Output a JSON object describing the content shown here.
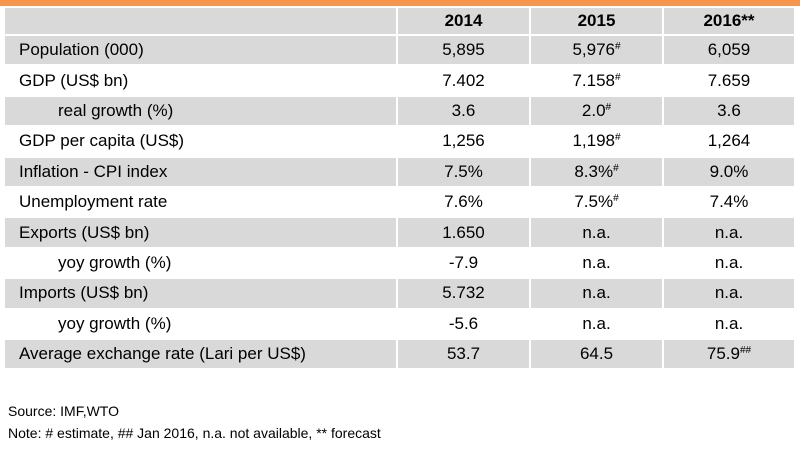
{
  "colors": {
    "accent_bar": "#f5964f",
    "shaded_row": "#d9d9d9"
  },
  "table": {
    "columns": [
      "2014",
      "2015",
      "2016**"
    ],
    "rows": [
      {
        "label": "Population (000)",
        "indent": false,
        "shaded": true,
        "cells": [
          {
            "value": "5,895"
          },
          {
            "value": "5,976",
            "mark": "#"
          },
          {
            "value": "6,059"
          }
        ]
      },
      {
        "label": "GDP (US$ bn)",
        "indent": false,
        "shaded": false,
        "cells": [
          {
            "value": "7.402"
          },
          {
            "value": "7.158",
            "mark": "#"
          },
          {
            "value": "7.659"
          }
        ]
      },
      {
        "label": "real growth (%)",
        "indent": true,
        "shaded": true,
        "cells": [
          {
            "value": "3.6"
          },
          {
            "value": "2.0",
            "mark": "#"
          },
          {
            "value": "3.6"
          }
        ]
      },
      {
        "label": "GDP per capita (US$)",
        "indent": false,
        "shaded": false,
        "cells": [
          {
            "value": "1,256"
          },
          {
            "value": "1,198",
            "mark": "#"
          },
          {
            "value": "1,264"
          }
        ]
      },
      {
        "label": "Inflation - CPI index",
        "indent": false,
        "shaded": true,
        "cells": [
          {
            "value": "7.5%"
          },
          {
            "value": "8.3%",
            "mark": "#"
          },
          {
            "value": "9.0%"
          }
        ]
      },
      {
        "label": "Unemployment rate",
        "indent": false,
        "shaded": false,
        "cells": [
          {
            "value": "7.6%"
          },
          {
            "value": "7.5%",
            "mark": "#"
          },
          {
            "value": "7.4%"
          }
        ]
      },
      {
        "label": "Exports (US$ bn)",
        "indent": false,
        "shaded": true,
        "cells": [
          {
            "value": "1.650"
          },
          {
            "value": "n.a."
          },
          {
            "value": "n.a."
          }
        ]
      },
      {
        "label": "yoy growth (%)",
        "indent": true,
        "shaded": false,
        "cells": [
          {
            "value": "-7.9"
          },
          {
            "value": "n.a."
          },
          {
            "value": "n.a."
          }
        ]
      },
      {
        "label": "Imports (US$ bn)",
        "indent": false,
        "shaded": true,
        "cells": [
          {
            "value": "5.732"
          },
          {
            "value": "n.a."
          },
          {
            "value": "n.a."
          }
        ]
      },
      {
        "label": "yoy growth (%)",
        "indent": true,
        "shaded": false,
        "cells": [
          {
            "value": "-5.6"
          },
          {
            "value": "n.a."
          },
          {
            "value": "n.a."
          }
        ]
      },
      {
        "label": "Average exchange rate (Lari per US$)",
        "indent": false,
        "shaded": true,
        "cells": [
          {
            "value": "53.7"
          },
          {
            "value": "64.5"
          },
          {
            "value": "75.9",
            "mark": "##"
          }
        ]
      }
    ]
  },
  "notes": {
    "source": "Source: IMF,WTO",
    "note": "Note: # estimate, ## Jan 2016, n.a. not available, ** forecast"
  }
}
